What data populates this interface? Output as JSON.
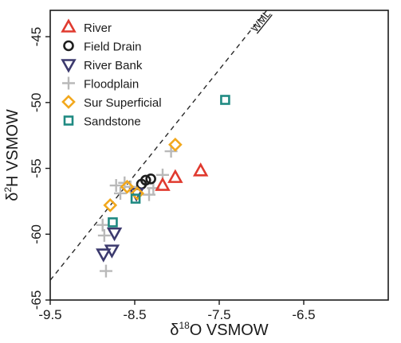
{
  "chart_data": {
    "type": "scatter",
    "xlabel": {
      "prefix": "δ",
      "sup": "18",
      "rest": "O VSMOW"
    },
    "ylabel": {
      "prefix": "δ",
      "sup": "2",
      "rest": "H VSMOW"
    },
    "xlim": [
      -9.5,
      -5.5
    ],
    "ylim": [
      -65,
      -43
    ],
    "x_ticks": [
      -9.5,
      -8.5,
      -7.5,
      -6.5
    ],
    "x_tick_labels": [
      "-9.5",
      "-8.5",
      "-7.5",
      "-6.5"
    ],
    "y_ticks": [
      -45,
      -50,
      -55,
      -60,
      -65
    ],
    "y_tick_labels": [
      "-45",
      "-50",
      "-55",
      "-60",
      "-65"
    ],
    "grid": false,
    "legend_position": "top-left",
    "reference_line": {
      "label": "WML",
      "slope": 8,
      "intercept": 12.5
    },
    "series": [
      {
        "name": "River",
        "marker": "triangle-up",
        "color": "#e03a2f",
        "points": [
          [
            -8.17,
            -56.3
          ],
          [
            -8.02,
            -55.7
          ],
          [
            -7.72,
            -55.2
          ]
        ]
      },
      {
        "name": "Field Drain",
        "marker": "circle",
        "color": "#1e1e1e",
        "points": [
          [
            -8.37,
            -55.9
          ],
          [
            -8.31,
            -55.8
          ],
          [
            -8.42,
            -56.2
          ]
        ]
      },
      {
        "name": "River Bank",
        "marker": "triangle-down",
        "color": "#3c3a6e",
        "points": [
          [
            -8.48,
            -56.9
          ],
          [
            -8.74,
            -59.9
          ],
          [
            -8.77,
            -61.2
          ],
          [
            -8.87,
            -61.5
          ]
        ]
      },
      {
        "name": "Floodplain",
        "marker": "plus",
        "color": "#b9b9b9",
        "points": [
          [
            -8.07,
            -53.7
          ],
          [
            -8.17,
            -55.5
          ],
          [
            -8.28,
            -56.5
          ],
          [
            -8.33,
            -57.0
          ],
          [
            -8.55,
            -56.4
          ],
          [
            -8.62,
            -56.1
          ],
          [
            -8.67,
            -56.9
          ],
          [
            -8.72,
            -56.3
          ],
          [
            -8.88,
            -59.3
          ],
          [
            -8.86,
            -60.1
          ],
          [
            -8.84,
            -62.8
          ]
        ]
      },
      {
        "name": "Sur Superficial",
        "marker": "diamond",
        "color": "#f2a81d",
        "points": [
          [
            -8.02,
            -53.2
          ],
          [
            -8.59,
            -56.4
          ],
          [
            -8.47,
            -56.9
          ],
          [
            -8.79,
            -57.8
          ]
        ]
      },
      {
        "name": "Sandstone",
        "marker": "square",
        "color": "#1f8a82",
        "points": [
          [
            -7.43,
            -49.8
          ],
          [
            -8.49,
            -57.3
          ],
          [
            -8.76,
            -59.1
          ]
        ]
      }
    ]
  }
}
